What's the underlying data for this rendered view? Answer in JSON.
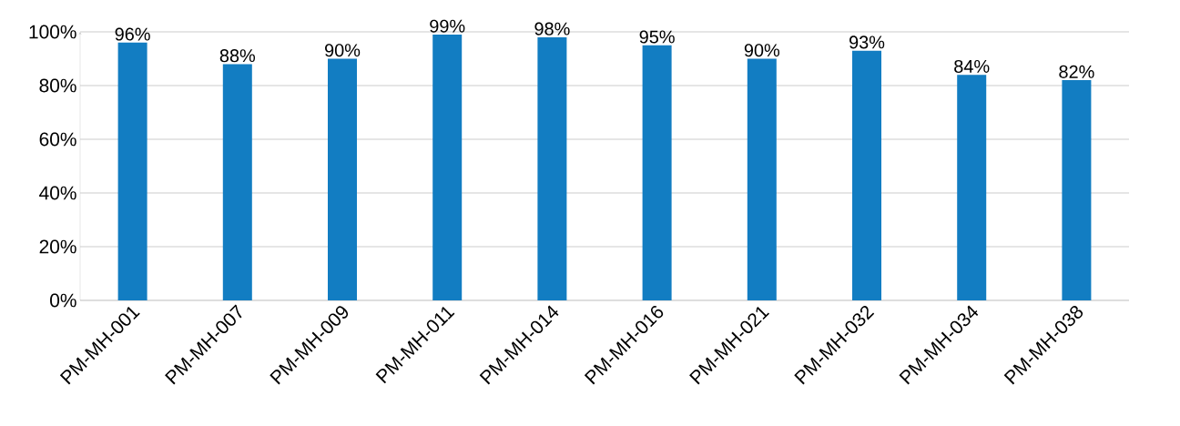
{
  "chart_data": {
    "type": "bar",
    "categories": [
      "PM-MH-001",
      "PM-MH-007",
      "PM-MH-009",
      "PM-MH-011",
      "PM-MH-014",
      "PM-MH-016",
      "PM-MH-021",
      "PM-MH-032",
      "PM-MH-034",
      "PM-MH-038"
    ],
    "values": [
      96,
      88,
      90,
      99,
      98,
      95,
      90,
      93,
      84,
      82
    ],
    "value_labels": [
      "96%",
      "88%",
      "90%",
      "99%",
      "98%",
      "95%",
      "90%",
      "93%",
      "84%",
      "82%"
    ],
    "color": "#127dc2",
    "ylim": [
      0,
      100
    ],
    "yticks": [
      {
        "value": 0,
        "label": "0%"
      },
      {
        "value": 20,
        "label": "20%"
      },
      {
        "value": 40,
        "label": "40%"
      },
      {
        "value": 60,
        "label": "60%"
      },
      {
        "value": 80,
        "label": "80%"
      },
      {
        "value": 100,
        "label": "100%"
      }
    ],
    "grid": "y"
  }
}
